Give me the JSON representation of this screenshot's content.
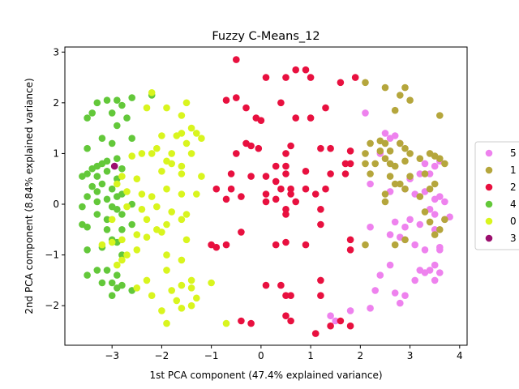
{
  "chart_data": {
    "type": "scatter",
    "title": "Fuzzy C-Means_12",
    "xlabel": "1st PCA component (47.4% explained variance)",
    "ylabel": "2nd PCA component (8.84% explained variance)",
    "xlim": [
      -3.95,
      4.15
    ],
    "ylim": [
      -2.78,
      3.1
    ],
    "xticks": [
      -3,
      -2,
      -1,
      0,
      1,
      2,
      3,
      4
    ],
    "yticks": [
      -2,
      -1,
      0,
      1,
      2,
      3
    ],
    "grid": false,
    "legend_position": "right",
    "series": [
      {
        "name": "5",
        "color": "#ee82ee",
        "points": [
          [
            2.1,
            1.8
          ],
          [
            2.5,
            1.4
          ],
          [
            2.6,
            1.3
          ],
          [
            2.7,
            1.35
          ],
          [
            2.8,
            1.2
          ],
          [
            2.4,
            1.0
          ],
          [
            2.2,
            0.4
          ],
          [
            2.6,
            0.25
          ],
          [
            2.9,
            0.3
          ],
          [
            3.0,
            0.5
          ],
          [
            3.2,
            0.6
          ],
          [
            3.3,
            0.8
          ],
          [
            3.5,
            0.75
          ],
          [
            3.6,
            0.85
          ],
          [
            3.4,
            0.6
          ],
          [
            3.1,
            0.2
          ],
          [
            3.3,
            0.25
          ],
          [
            3.5,
            0.1
          ],
          [
            3.6,
            0.15
          ],
          [
            3.7,
            0.05
          ],
          [
            3.4,
            -0.1
          ],
          [
            3.0,
            -0.3
          ],
          [
            3.2,
            -0.4
          ],
          [
            3.5,
            -0.2
          ],
          [
            3.7,
            -0.3
          ],
          [
            3.8,
            -0.25
          ],
          [
            2.7,
            -0.35
          ],
          [
            2.9,
            -0.45
          ],
          [
            2.6,
            -0.6
          ],
          [
            2.8,
            -0.65
          ],
          [
            2.9,
            -0.7
          ],
          [
            3.1,
            -0.8
          ],
          [
            3.3,
            -0.9
          ],
          [
            3.5,
            -0.5
          ],
          [
            3.6,
            -0.85
          ],
          [
            3.6,
            -0.9
          ],
          [
            3.2,
            -1.3
          ],
          [
            3.3,
            -1.35
          ],
          [
            3.4,
            -1.3
          ],
          [
            3.5,
            -1.2
          ],
          [
            3.6,
            -1.35
          ],
          [
            3.5,
            -1.5
          ],
          [
            3.1,
            -1.5
          ],
          [
            2.6,
            -1.2
          ],
          [
            2.4,
            -1.4
          ],
          [
            2.3,
            -1.7
          ],
          [
            2.7,
            -1.75
          ],
          [
            2.8,
            -1.95
          ],
          [
            2.9,
            -1.8
          ],
          [
            2.2,
            -2.05
          ],
          [
            1.8,
            -2.1
          ],
          [
            1.5,
            -2.3
          ],
          [
            1.4,
            -2.2
          ],
          [
            2.2,
            -0.45
          ]
        ]
      },
      {
        "name": "1",
        "color": "#b5a63c",
        "points": [
          [
            2.1,
            2.4
          ],
          [
            2.5,
            2.3
          ],
          [
            2.8,
            2.15
          ],
          [
            2.9,
            2.3
          ],
          [
            3.0,
            2.05
          ],
          [
            2.7,
            1.85
          ],
          [
            2.4,
            1.25
          ],
          [
            2.5,
            1.2
          ],
          [
            2.2,
            1.2
          ],
          [
            2.1,
            1.0
          ],
          [
            2.4,
            1.05
          ],
          [
            2.6,
            1.05
          ],
          [
            2.8,
            1.2
          ],
          [
            2.9,
            1.1
          ],
          [
            3.0,
            1.0
          ],
          [
            2.9,
            0.85
          ],
          [
            2.6,
            0.8
          ],
          [
            2.5,
            0.9
          ],
          [
            2.7,
            0.75
          ],
          [
            3.2,
            0.9
          ],
          [
            3.4,
            1.0
          ],
          [
            3.5,
            0.95
          ],
          [
            3.6,
            0.9
          ],
          [
            3.7,
            0.8
          ],
          [
            3.3,
            0.6
          ],
          [
            3.0,
            0.55
          ],
          [
            2.8,
            0.4
          ],
          [
            2.9,
            0.3
          ],
          [
            3.2,
            0.15
          ],
          [
            2.1,
            0.8
          ],
          [
            2.3,
            0.8
          ],
          [
            2.2,
            0.6
          ],
          [
            2.5,
            0.2
          ],
          [
            2.6,
            0.55
          ],
          [
            2.7,
            0.4
          ],
          [
            2.5,
            0.05
          ],
          [
            3.3,
            -0.15
          ],
          [
            3.4,
            -0.35
          ],
          [
            3.5,
            -0.6
          ],
          [
            3.6,
            -0.5
          ],
          [
            3.7,
            -0.3
          ],
          [
            2.7,
            -0.8
          ],
          [
            2.9,
            -0.7
          ],
          [
            2.1,
            -0.8
          ],
          [
            3.6,
            1.75
          ],
          [
            3.4,
            0.3
          ],
          [
            3.5,
            0.4
          ]
        ]
      },
      {
        "name": "2",
        "color": "#e8103f",
        "points": [
          [
            -0.5,
            2.85
          ],
          [
            0.7,
            2.65
          ],
          [
            0.9,
            2.65
          ],
          [
            0.5,
            2.5
          ],
          [
            1.0,
            2.5
          ],
          [
            0.1,
            2.5
          ],
          [
            1.6,
            2.4
          ],
          [
            1.9,
            2.5
          ],
          [
            -0.7,
            2.05
          ],
          [
            -0.5,
            2.1
          ],
          [
            -0.3,
            1.9
          ],
          [
            0.4,
            2.0
          ],
          [
            1.3,
            1.9
          ],
          [
            -0.1,
            1.7
          ],
          [
            0.0,
            1.65
          ],
          [
            0.7,
            1.7
          ],
          [
            1.0,
            1.7
          ],
          [
            -0.3,
            1.2
          ],
          [
            -0.2,
            1.15
          ],
          [
            -0.05,
            1.1
          ],
          [
            -0.5,
            1.0
          ],
          [
            0.5,
            1.0
          ],
          [
            0.6,
            1.15
          ],
          [
            1.2,
            1.1
          ],
          [
            1.4,
            1.1
          ],
          [
            1.8,
            1.05
          ],
          [
            -0.6,
            0.6
          ],
          [
            -0.2,
            0.55
          ],
          [
            0.3,
            0.75
          ],
          [
            0.5,
            0.75
          ],
          [
            0.5,
            0.6
          ],
          [
            0.9,
            0.65
          ],
          [
            0.3,
            0.45
          ],
          [
            1.4,
            0.6
          ],
          [
            1.7,
            0.6
          ],
          [
            1.7,
            0.8
          ],
          [
            1.8,
            0.8
          ],
          [
            0.1,
            0.55
          ],
          [
            -0.9,
            0.3
          ],
          [
            -0.6,
            0.3
          ],
          [
            0.1,
            0.2
          ],
          [
            0.4,
            0.3
          ],
          [
            0.6,
            0.3
          ],
          [
            0.9,
            0.3
          ],
          [
            1.1,
            0.2
          ],
          [
            1.3,
            0.3
          ],
          [
            -0.7,
            0.1
          ],
          [
            -0.4,
            0.15
          ],
          [
            0.1,
            0.05
          ],
          [
            0.3,
            0.1
          ],
          [
            0.6,
            0.2
          ],
          [
            0.7,
            0.05
          ],
          [
            0.5,
            -0.2
          ],
          [
            0.5,
            -0.1
          ],
          [
            1.2,
            -0.1
          ],
          [
            -0.4,
            -0.55
          ],
          [
            0.3,
            -0.8
          ],
          [
            0.5,
            -0.75
          ],
          [
            0.9,
            -0.8
          ],
          [
            1.2,
            -0.4
          ],
          [
            -0.7,
            -0.8
          ],
          [
            -0.9,
            -0.85
          ],
          [
            -1.0,
            -0.8
          ],
          [
            1.8,
            -0.7
          ],
          [
            1.8,
            -0.9
          ],
          [
            0.1,
            -1.6
          ],
          [
            0.4,
            -1.6
          ],
          [
            0.5,
            -1.8
          ],
          [
            0.6,
            -1.8
          ],
          [
            1.2,
            -1.5
          ],
          [
            1.2,
            -1.8
          ],
          [
            0.5,
            -2.2
          ],
          [
            0.6,
            -2.3
          ],
          [
            1.1,
            -2.55
          ],
          [
            1.4,
            -2.4
          ],
          [
            1.6,
            -2.3
          ],
          [
            1.8,
            -2.4
          ],
          [
            -0.4,
            -2.3
          ],
          [
            -0.2,
            -2.35
          ]
        ]
      },
      {
        "name": "4",
        "color": "#63c83a",
        "points": [
          [
            -3.3,
            2.0
          ],
          [
            -3.1,
            2.05
          ],
          [
            -2.9,
            2.05
          ],
          [
            -2.6,
            2.1
          ],
          [
            -2.8,
            1.95
          ],
          [
            -3.4,
            1.8
          ],
          [
            -3.5,
            1.7
          ],
          [
            -3.0,
            1.8
          ],
          [
            -2.7,
            1.7
          ],
          [
            -2.9,
            1.55
          ],
          [
            -3.2,
            1.3
          ],
          [
            -3.0,
            1.2
          ],
          [
            -2.6,
            1.3
          ],
          [
            -3.5,
            1.1
          ],
          [
            -3.1,
            0.85
          ],
          [
            -3.2,
            0.8
          ],
          [
            -2.9,
            0.9
          ],
          [
            -2.8,
            0.7
          ],
          [
            -3.4,
            0.7
          ],
          [
            -3.3,
            0.75
          ],
          [
            -3.5,
            0.6
          ],
          [
            -3.6,
            0.55
          ],
          [
            -3.3,
            0.55
          ],
          [
            -3.1,
            0.65
          ],
          [
            -2.9,
            0.5
          ],
          [
            -3.2,
            0.4
          ],
          [
            -3.4,
            0.35
          ],
          [
            -3.0,
            0.3
          ],
          [
            -2.8,
            0.2
          ],
          [
            -3.3,
            0.25
          ],
          [
            -3.5,
            0.15
          ],
          [
            -3.3,
            0.05
          ],
          [
            -3.1,
            0.1
          ],
          [
            -2.9,
            0.15
          ],
          [
            -3.6,
            -0.05
          ],
          [
            -3.0,
            -0.05
          ],
          [
            -2.9,
            -0.1
          ],
          [
            -2.6,
            0.0
          ],
          [
            -3.3,
            -0.2
          ],
          [
            -3.1,
            -0.3
          ],
          [
            -2.8,
            -0.2
          ],
          [
            -3.6,
            -0.4
          ],
          [
            -3.5,
            -0.45
          ],
          [
            -3.1,
            -0.5
          ],
          [
            -2.8,
            -0.5
          ],
          [
            -2.6,
            -0.4
          ],
          [
            -3.0,
            -0.7
          ],
          [
            -2.9,
            -0.75
          ],
          [
            -3.2,
            -0.85
          ],
          [
            -3.5,
            -0.9
          ],
          [
            -2.8,
            -1.0
          ],
          [
            -3.3,
            -1.3
          ],
          [
            -3.1,
            -1.3
          ],
          [
            -2.9,
            -1.4
          ],
          [
            -3.5,
            -1.4
          ],
          [
            -3.0,
            -1.55
          ],
          [
            -2.8,
            -1.6
          ],
          [
            -3.2,
            -1.55
          ],
          [
            -2.9,
            -1.65
          ],
          [
            -3.0,
            -1.8
          ],
          [
            -2.6,
            -1.7
          ],
          [
            -2.2,
            2.15
          ]
        ]
      },
      {
        "name": "0",
        "color": "#d9f51e",
        "points": [
          [
            -2.2,
            2.2
          ],
          [
            -1.5,
            2.0
          ],
          [
            -1.9,
            1.9
          ],
          [
            -1.6,
            1.75
          ],
          [
            -2.3,
            1.9
          ],
          [
            -1.4,
            1.5
          ],
          [
            -1.3,
            1.4
          ],
          [
            -1.6,
            1.4
          ],
          [
            -2.0,
            1.35
          ],
          [
            -1.2,
            1.3
          ],
          [
            -1.7,
            1.35
          ],
          [
            -2.1,
            1.1
          ],
          [
            -1.5,
            1.2
          ],
          [
            -2.4,
            1.0
          ],
          [
            -2.2,
            1.0
          ],
          [
            -1.8,
            1.0
          ],
          [
            -1.4,
            1.0
          ],
          [
            -2.6,
            0.95
          ],
          [
            -1.9,
            0.85
          ],
          [
            -1.8,
            0.8
          ],
          [
            -1.6,
            0.75
          ],
          [
            -2.0,
            0.65
          ],
          [
            -2.5,
            0.5
          ],
          [
            -2.8,
            0.55
          ],
          [
            -1.6,
            0.6
          ],
          [
            -1.2,
            0.55
          ],
          [
            -2.9,
            0.4
          ],
          [
            -2.7,
            0.25
          ],
          [
            -2.4,
            0.2
          ],
          [
            -2.2,
            0.15
          ],
          [
            -1.9,
            0.3
          ],
          [
            -1.6,
            0.2
          ],
          [
            -1.3,
            0.2
          ],
          [
            -2.7,
            -0.05
          ],
          [
            -2.4,
            -0.1
          ],
          [
            -2.1,
            -0.05
          ],
          [
            -1.8,
            -0.15
          ],
          [
            -1.5,
            -0.2
          ],
          [
            -2.3,
            -0.3
          ],
          [
            -1.9,
            -0.4
          ],
          [
            -1.6,
            -0.3
          ],
          [
            -3.2,
            -0.8
          ],
          [
            -3.0,
            -0.75
          ],
          [
            -2.8,
            -0.7
          ],
          [
            -2.5,
            -0.6
          ],
          [
            -2.3,
            -0.65
          ],
          [
            -2.1,
            -0.5
          ],
          [
            -2.0,
            -0.55
          ],
          [
            -1.5,
            -0.7
          ],
          [
            -2.7,
            -1.0
          ],
          [
            -2.5,
            -0.9
          ],
          [
            -1.9,
            -1.0
          ],
          [
            -1.6,
            -1.1
          ],
          [
            -2.9,
            -1.2
          ],
          [
            -1.9,
            -1.3
          ],
          [
            -1.4,
            -1.5
          ],
          [
            -1.6,
            -1.6
          ],
          [
            -1.0,
            -1.55
          ],
          [
            -2.5,
            -1.65
          ],
          [
            -1.8,
            -1.7
          ],
          [
            -1.4,
            -1.65
          ],
          [
            -2.2,
            -1.8
          ],
          [
            -1.7,
            -1.9
          ],
          [
            -1.3,
            -1.85
          ],
          [
            -2.0,
            -2.1
          ],
          [
            -1.6,
            -2.05
          ],
          [
            -1.4,
            -2.0
          ],
          [
            -1.9,
            -2.35
          ],
          [
            -0.7,
            -2.35
          ],
          [
            -2.3,
            -1.5
          ],
          [
            -2.8,
            -1.1
          ],
          [
            -3.0,
            -0.3
          ]
        ]
      },
      {
        "name": "3",
        "color": "#9b0f6e",
        "points": [
          [
            -2.95,
            0.75
          ]
        ]
      }
    ]
  }
}
